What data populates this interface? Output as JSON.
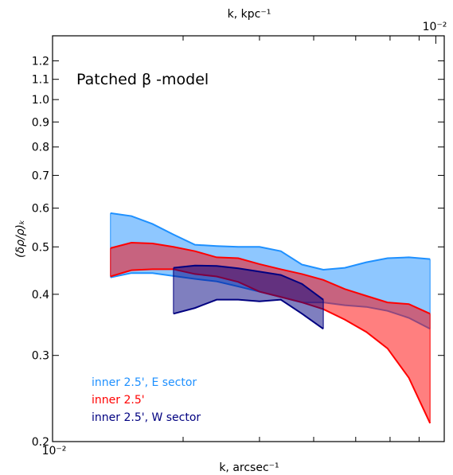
{
  "chart_data": {
    "type": "area",
    "title": "",
    "annotation": "Patched β -model",
    "xlabel_bottom": "k, arcsec⁻¹",
    "xlabel_top": "k, kpc⁻¹",
    "ylabel": "(δρ/ρ)ₖ",
    "top_axis_scale_label": "10⁻²",
    "bottom_axis_scale_label": "10⁻²",
    "y_scale": "log",
    "ylim": [
      0.2,
      1.35
    ],
    "y_ticks": [
      0.2,
      0.3,
      0.4,
      0.5,
      0.6,
      0.7,
      0.8,
      0.9,
      1.0,
      1.1,
      1.2
    ],
    "y_tick_labels": [
      "0.2",
      "0.3",
      "0.4",
      "0.5",
      "0.6",
      "0.7",
      "0.8",
      "0.9",
      "1.0",
      "1.1",
      "1.2"
    ],
    "x_scale": "log",
    "xlim": [
      0.01,
      0.08
    ],
    "grid": false,
    "legend_position": "bottom-left",
    "series": [
      {
        "name": "inner 2.5', E sector",
        "color": "#1e90ff",
        "fill": "#1e90ff",
        "fill_opacity": 0.5,
        "x": [
          0.0136,
          0.0152,
          0.017,
          0.019,
          0.0213,
          0.0239,
          0.0268,
          0.03,
          0.0336,
          0.0376,
          0.0421,
          0.0472,
          0.0529,
          0.0592,
          0.0663,
          0.0742
        ],
        "upper": [
          0.586,
          0.578,
          0.557,
          0.53,
          0.505,
          0.502,
          0.5,
          0.5,
          0.49,
          0.46,
          0.449,
          0.453,
          0.465,
          0.474,
          0.476,
          0.472
        ],
        "lower": [
          0.433,
          0.442,
          0.442,
          0.436,
          0.43,
          0.425,
          0.415,
          0.405,
          0.395,
          0.385,
          0.385,
          0.38,
          0.377,
          0.37,
          0.358,
          0.34
        ]
      },
      {
        "name": "inner 2.5'",
        "color": "#ff0000",
        "fill": "#ff0000",
        "fill_opacity": 0.5,
        "x": [
          0.0136,
          0.0152,
          0.017,
          0.019,
          0.0213,
          0.0239,
          0.0268,
          0.03,
          0.0336,
          0.0376,
          0.0421,
          0.0472,
          0.0529,
          0.0592,
          0.0663,
          0.0742
        ],
        "upper": [
          0.497,
          0.51,
          0.508,
          0.5,
          0.49,
          0.476,
          0.474,
          0.461,
          0.45,
          0.44,
          0.428,
          0.41,
          0.397,
          0.385,
          0.382,
          0.365
        ],
        "lower": [
          0.435,
          0.448,
          0.45,
          0.45,
          0.44,
          0.435,
          0.424,
          0.405,
          0.395,
          0.385,
          0.373,
          0.355,
          0.335,
          0.31,
          0.27,
          0.218
        ]
      },
      {
        "name": "inner 2.5', W sector",
        "color": "#000080",
        "fill": "#000080",
        "fill_opacity": 0.5,
        "x": [
          0.019,
          0.0213,
          0.0239,
          0.0268,
          0.03,
          0.0336,
          0.0376,
          0.0421
        ],
        "upper": [
          0.453,
          0.458,
          0.457,
          0.452,
          0.445,
          0.438,
          0.42,
          0.39
        ],
        "lower": [
          0.365,
          0.375,
          0.39,
          0.39,
          0.387,
          0.39,
          0.365,
          0.34
        ]
      }
    ]
  }
}
